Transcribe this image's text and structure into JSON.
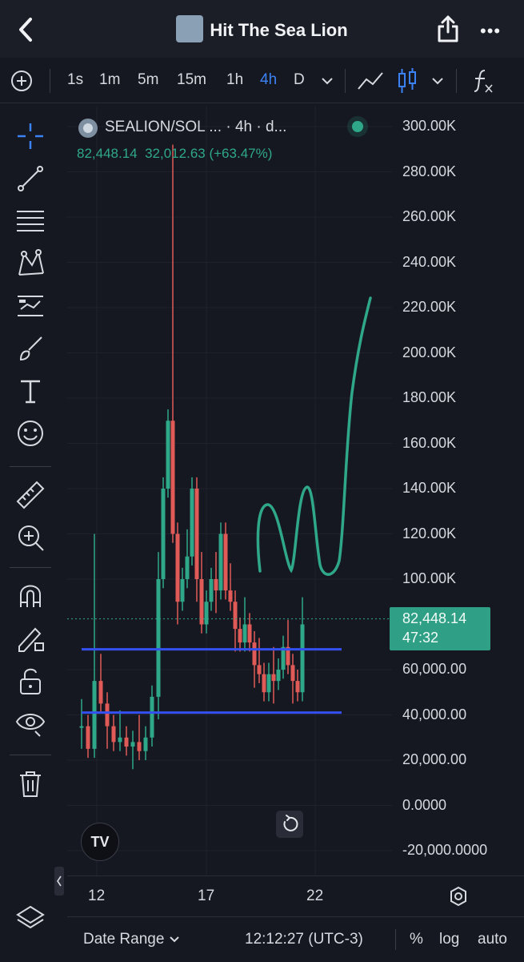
{
  "header": {
    "title": "Hit The Sea Lion",
    "more": "•••"
  },
  "toolbar": {
    "intervals": [
      {
        "label": "1s",
        "active": false
      },
      {
        "label": "1m",
        "active": false
      },
      {
        "label": "5m",
        "active": false
      },
      {
        "label": "15m",
        "active": false
      },
      {
        "label": "1h",
        "active": false
      },
      {
        "label": "4h",
        "active": true
      },
      {
        "label": "D",
        "active": false
      }
    ]
  },
  "legend": {
    "symbol": "SEALION/SOL ... · 4h · d...",
    "last": "82,448.14",
    "change": "32,012.63",
    "change_pct": "(+63.47%)"
  },
  "price_tag": {
    "price": "82,448.14",
    "countdown": "47:32"
  },
  "colors": {
    "up": "#2fa889",
    "down": "#e05a57",
    "level": "#3550f0",
    "accent": "#3b82f6"
  },
  "chart_data": {
    "type": "candlestick",
    "y_ticks": [
      "300.00K",
      "280.00K",
      "260.00K",
      "240.00K",
      "220.00K",
      "200.00K",
      "180.00K",
      "160.00K",
      "140.00K",
      "120.00K",
      "100.00K",
      "60,000.00",
      "40,000.00",
      "20,000.00",
      "0.0000",
      "-20,000.0000"
    ],
    "ylim": [
      -20000,
      300000
    ],
    "x_ticks": [
      "12",
      "17",
      "22"
    ],
    "horizontal_levels": [
      69000,
      41000
    ],
    "last_price": 82448.14
  },
  "bottom": {
    "date_range": "Date Range",
    "time": "12:12:27 (UTC-3)",
    "pct": "%",
    "log": "log",
    "auto": "auto"
  },
  "icons": [
    "back-icon",
    "share-icon",
    "add-indicator-icon",
    "line-chart-icon",
    "candles-icon",
    "fx-icon",
    "crosshair-icon",
    "trendline-icon",
    "fib-icon",
    "pattern-icon",
    "forecast-icon",
    "brush-icon",
    "text-icon",
    "emoji-icon",
    "ruler-icon",
    "zoom-icon",
    "magnet-icon",
    "lock-drawing-icon",
    "lock-icon",
    "eye-icon",
    "trash-icon",
    "layers-icon",
    "settings-icon",
    "reset-icon"
  ]
}
